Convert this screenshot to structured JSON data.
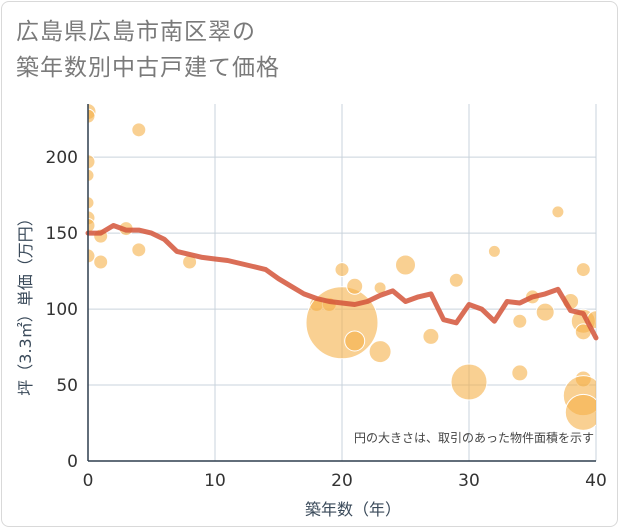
{
  "title_line1": "広島県広島市南区翠の",
  "title_line2": "築年数別中古戸建て価格",
  "chart_data": {
    "type": "scatter",
    "xlabel": "築年数（年）",
    "ylabel": "坪（3.3㎡）単価（万円）",
    "xlim": [
      0,
      40
    ],
    "ylim": [
      0,
      235
    ],
    "xticks": [
      0,
      10,
      20,
      30,
      40
    ],
    "yticks": [
      0,
      50,
      100,
      150,
      200
    ],
    "grid": true,
    "annotation": "円の大きさは、取引のあった物件面積を示す",
    "colors": {
      "bubble": "#f5b04a",
      "line": "#d4553a",
      "grid": "#c9d3dc"
    },
    "series": [
      {
        "type": "line",
        "x": [
          0,
          1,
          2,
          3,
          4,
          5,
          6,
          7,
          8,
          9,
          10,
          11,
          12,
          13,
          14,
          15,
          16,
          17,
          18,
          19,
          20,
          21,
          22,
          23,
          24,
          25,
          26,
          27,
          28,
          29,
          30,
          31,
          32,
          33,
          34,
          35,
          36,
          37,
          38,
          39,
          40
        ],
        "values": [
          150,
          150,
          155,
          152,
          152,
          150,
          146,
          138,
          136,
          134,
          133,
          132,
          130,
          128,
          126,
          120,
          115,
          110,
          107,
          105,
          104,
          103,
          105,
          109,
          112,
          105,
          108,
          110,
          93,
          91,
          103,
          100,
          92,
          105,
          104,
          108,
          110,
          113,
          99,
          97,
          81
        ]
      },
      {
        "type": "bubble",
        "points": [
          {
            "x": 0,
            "y": 230,
            "s": 8
          },
          {
            "x": 0,
            "y": 227,
            "s": 7
          },
          {
            "x": 0,
            "y": 197,
            "s": 7
          },
          {
            "x": 0,
            "y": 188,
            "s": 6
          },
          {
            "x": 0,
            "y": 170,
            "s": 6
          },
          {
            "x": 0,
            "y": 160,
            "s": 7
          },
          {
            "x": 0,
            "y": 155,
            "s": 7
          },
          {
            "x": 0,
            "y": 135,
            "s": 7
          },
          {
            "x": 1,
            "y": 148,
            "s": 7
          },
          {
            "x": 1,
            "y": 131,
            "s": 7
          },
          {
            "x": 3,
            "y": 153,
            "s": 7
          },
          {
            "x": 4,
            "y": 218,
            "s": 7
          },
          {
            "x": 4,
            "y": 139,
            "s": 7
          },
          {
            "x": 8,
            "y": 131,
            "s": 7
          },
          {
            "x": 18,
            "y": 103,
            "s": 7
          },
          {
            "x": 19,
            "y": 103,
            "s": 7
          },
          {
            "x": 20,
            "y": 126,
            "s": 7
          },
          {
            "x": 20,
            "y": 91,
            "s": 36
          },
          {
            "x": 21,
            "y": 115,
            "s": 8
          },
          {
            "x": 21,
            "y": 79,
            "s": 10
          },
          {
            "x": 23,
            "y": 114,
            "s": 6
          },
          {
            "x": 23,
            "y": 72,
            "s": 11
          },
          {
            "x": 25,
            "y": 129,
            "s": 10
          },
          {
            "x": 27,
            "y": 82,
            "s": 8
          },
          {
            "x": 29,
            "y": 119,
            "s": 7
          },
          {
            "x": 30,
            "y": 52,
            "s": 18
          },
          {
            "x": 32,
            "y": 138,
            "s": 6
          },
          {
            "x": 34,
            "y": 92,
            "s": 7
          },
          {
            "x": 34,
            "y": 58,
            "s": 8
          },
          {
            "x": 35,
            "y": 108,
            "s": 7
          },
          {
            "x": 36,
            "y": 98,
            "s": 9
          },
          {
            "x": 37,
            "y": 164,
            "s": 6
          },
          {
            "x": 38,
            "y": 105,
            "s": 8
          },
          {
            "x": 39,
            "y": 126,
            "s": 7
          },
          {
            "x": 39,
            "y": 92,
            "s": 12
          },
          {
            "x": 39,
            "y": 85,
            "s": 8
          },
          {
            "x": 39,
            "y": 54,
            "s": 8
          },
          {
            "x": 39,
            "y": 43,
            "s": 20
          },
          {
            "x": 39,
            "y": 32,
            "s": 18
          },
          {
            "x": 40,
            "y": 93,
            "s": 9
          }
        ]
      }
    ]
  }
}
